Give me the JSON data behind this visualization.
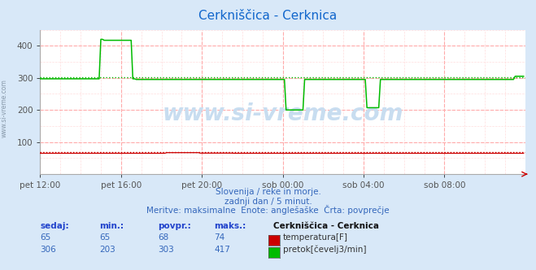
{
  "title": "Cerkniščica - Cerknica",
  "bg_color": "#d8e8f8",
  "plot_bg_color": "#ffffff",
  "grid_color_major": "#ffaaaa",
  "grid_color_minor": "#ffdddd",
  "xlim": [
    0,
    288
  ],
  "ylim": [
    0,
    450
  ],
  "yticks": [
    100,
    200,
    300,
    400
  ],
  "xlabel_ticks": [
    0,
    48,
    96,
    144,
    192,
    240
  ],
  "xlabel_labels": [
    "pet 12:00",
    "pet 16:00",
    "pet 20:00",
    "sob 00:00",
    "sob 04:00",
    "sob 08:00"
  ],
  "temp_color": "#cc0000",
  "flow_color": "#00bb00",
  "avg_temp": 68,
  "avg_flow": 303,
  "watermark": "www.si-vreme.com",
  "footer_line1": "Slovenija / reke in morje.",
  "footer_line2": "zadnji dan / 5 minut.",
  "footer_line3": "Meritve: maksimalne  Enote: anglešaške  Črta: povprečje",
  "col_header": [
    "sedaj:",
    "min.:",
    "povpr.:",
    "maks.:",
    "Cerkniščica - Cerknica"
  ],
  "row1_vals": [
    "65",
    "65",
    "68",
    "74"
  ],
  "row1_label": "temperatura[F]",
  "row2_vals": [
    "306",
    "203",
    "303",
    "417"
  ],
  "row2_label": "pretok[čevelj3/min]",
  "temp_color_swatch": "#cc0000",
  "flow_color_swatch": "#00bb00",
  "side_text": "www.si-vreme.com"
}
